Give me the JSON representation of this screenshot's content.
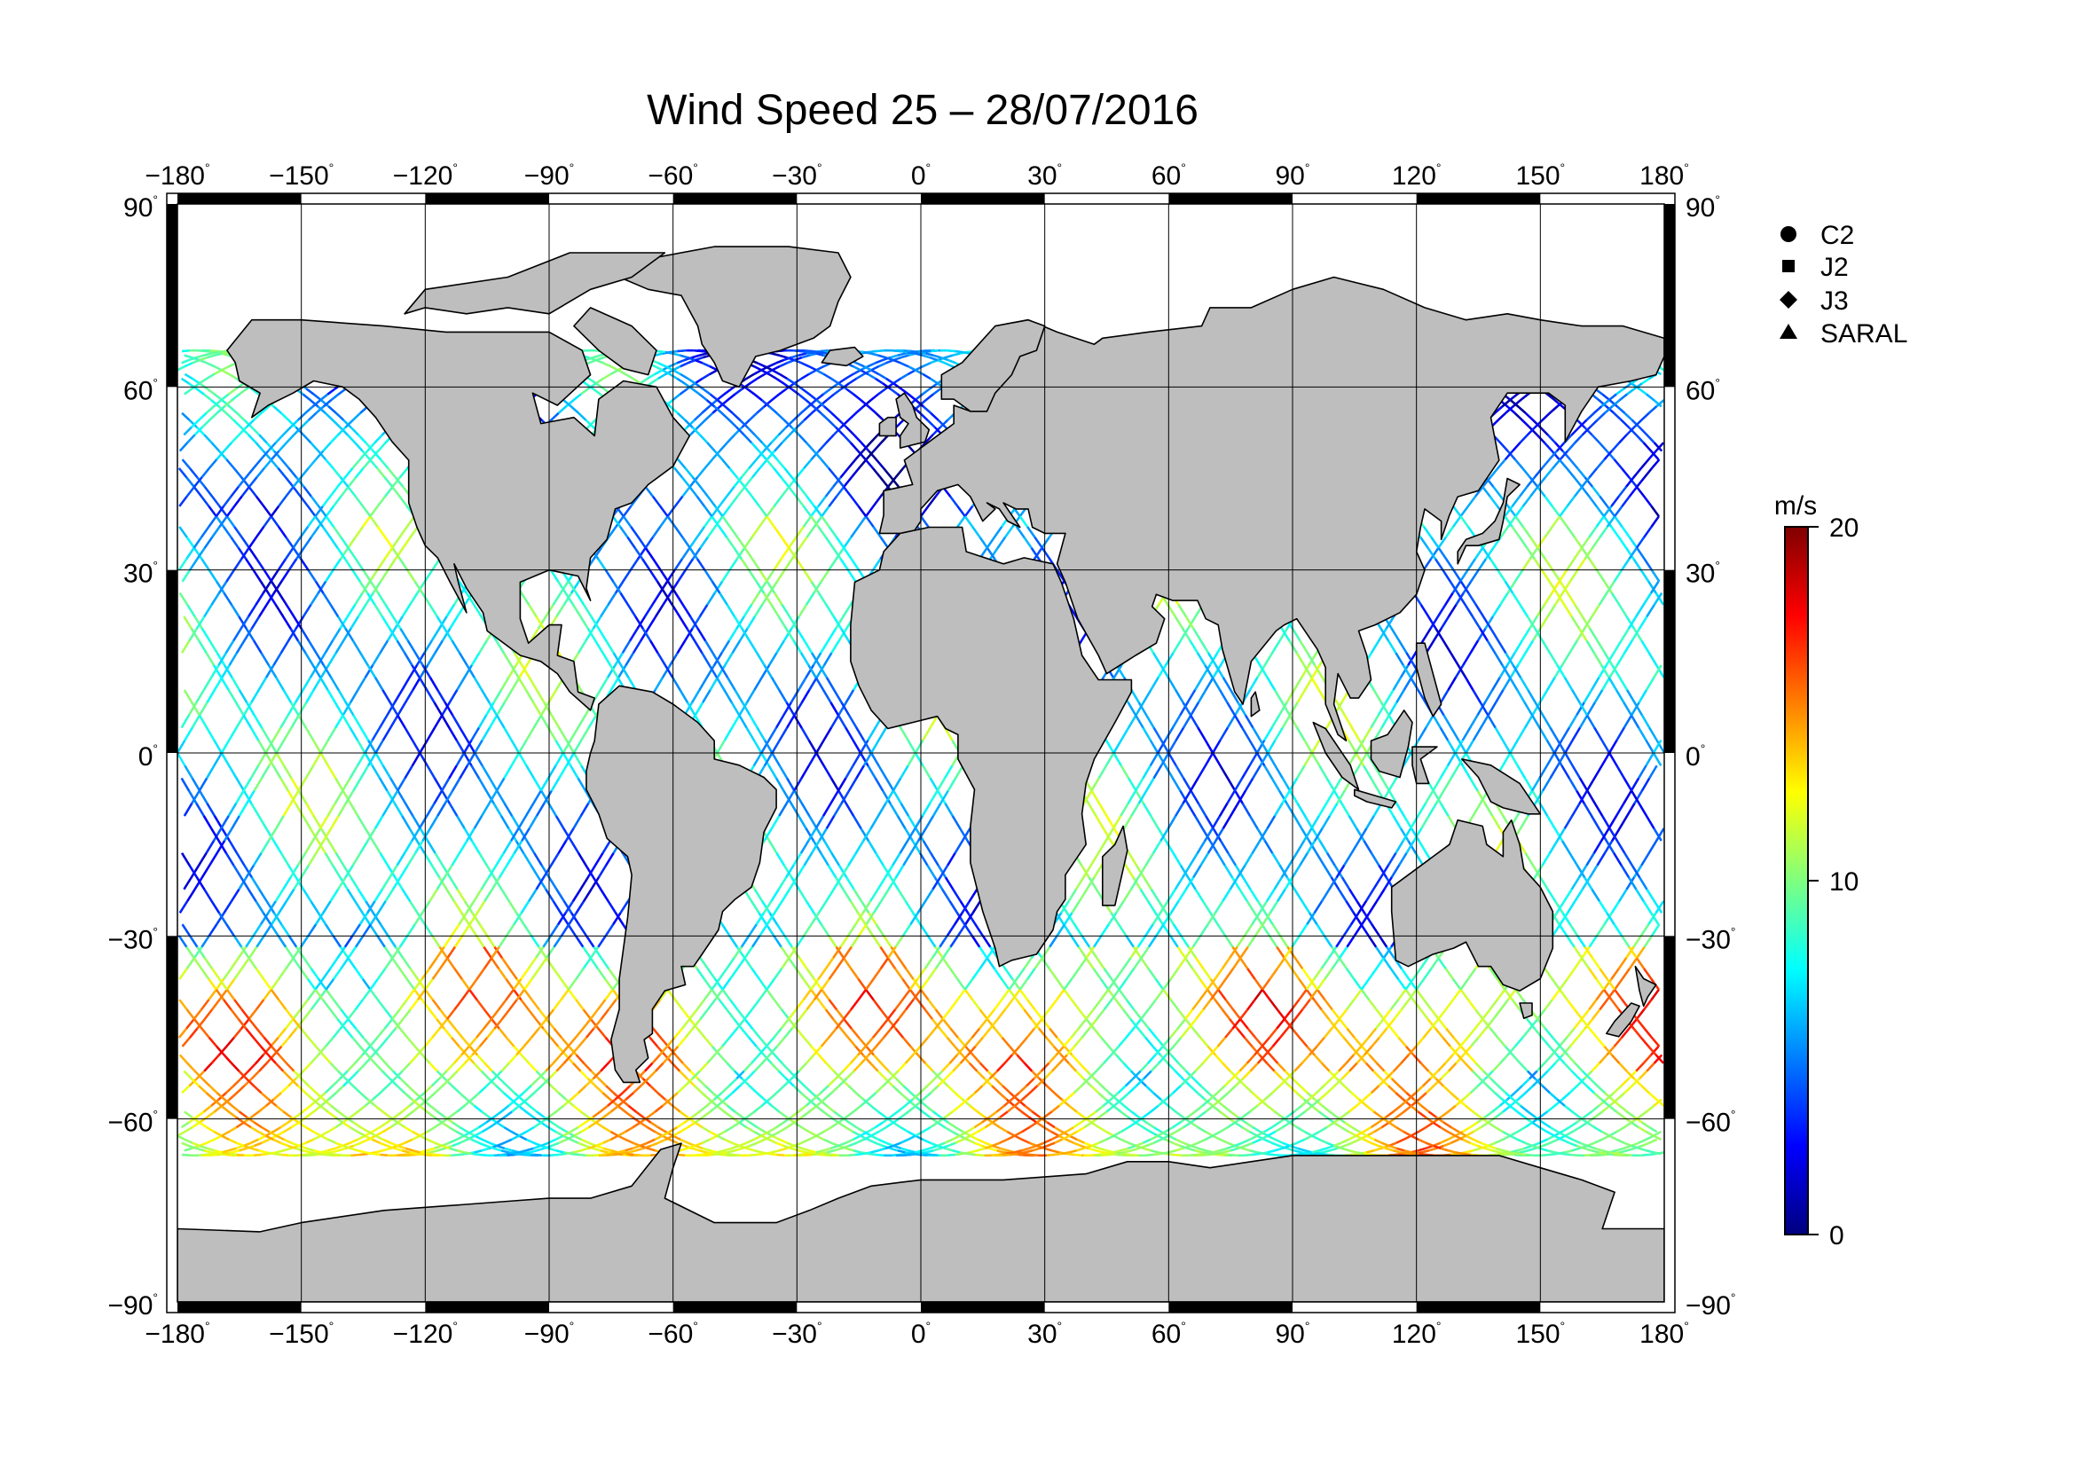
{
  "title": "Wind Speed 25 – 28/07/2016",
  "map": {
    "projection": "equirectangular",
    "lon_range": [
      -180,
      180
    ],
    "lat_range": [
      -90,
      90
    ],
    "lon_ticks": [
      {
        "value": -180,
        "label": "−180"
      },
      {
        "value": -150,
        "label": "−150"
      },
      {
        "value": -120,
        "label": "−120"
      },
      {
        "value": -90,
        "label": "−90"
      },
      {
        "value": -60,
        "label": "−60"
      },
      {
        "value": -30,
        "label": "−30"
      },
      {
        "value": 0,
        "label": "0"
      },
      {
        "value": 30,
        "label": "30"
      },
      {
        "value": 60,
        "label": "60"
      },
      {
        "value": 90,
        "label": "90"
      },
      {
        "value": 120,
        "label": "120"
      },
      {
        "value": 150,
        "label": "150"
      },
      {
        "value": 180,
        "label": "180"
      }
    ],
    "lat_ticks": [
      {
        "value": 90,
        "label": "90"
      },
      {
        "value": 60,
        "label": "60"
      },
      {
        "value": 30,
        "label": "30"
      },
      {
        "value": 0,
        "label": "0"
      },
      {
        "value": -30,
        "label": "−30"
      },
      {
        "value": -60,
        "label": "−60"
      },
      {
        "value": -90,
        "label": "−90"
      }
    ],
    "degree_symbol": "°",
    "grid": true,
    "land_color": "#bebebe",
    "ocean_color": "#ffffff"
  },
  "legend": {
    "placement": "right",
    "items": [
      {
        "label": "C2",
        "marker": "circle"
      },
      {
        "label": "J2",
        "marker": "square"
      },
      {
        "label": "J3",
        "marker": "diamond"
      },
      {
        "label": "SARAL",
        "marker": "triangle"
      }
    ]
  },
  "colorbar": {
    "unit": "m/s",
    "min": 0,
    "max": 20,
    "ticks": [
      {
        "value": 0,
        "label": "0"
      },
      {
        "value": 10,
        "label": "10"
      },
      {
        "value": 20,
        "label": "20"
      }
    ],
    "colors": [
      "#00007f",
      "#0000ff",
      "#007fff",
      "#00ffff",
      "#7fff7f",
      "#ffff00",
      "#ff7f00",
      "#ff0000",
      "#7f0000"
    ]
  },
  "chart_data": {
    "type": "scatter",
    "xlabel": "",
    "ylabel": "",
    "xlim": [
      -180,
      180
    ],
    "ylim": [
      -90,
      90
    ],
    "value_unit": "m/s",
    "regional_wind_speed": [
      {
        "lat_band": [
          40,
          66
        ],
        "typical_ms": 5
      },
      {
        "lat_band": [
          -30,
          40
        ],
        "typical_ms": 7
      },
      {
        "lat_band": [
          -66,
          -30
        ],
        "typical_ms": 12
      },
      {
        "lat_band": [
          -50,
          -38
        ],
        "peak_ms": 18
      }
    ]
  }
}
